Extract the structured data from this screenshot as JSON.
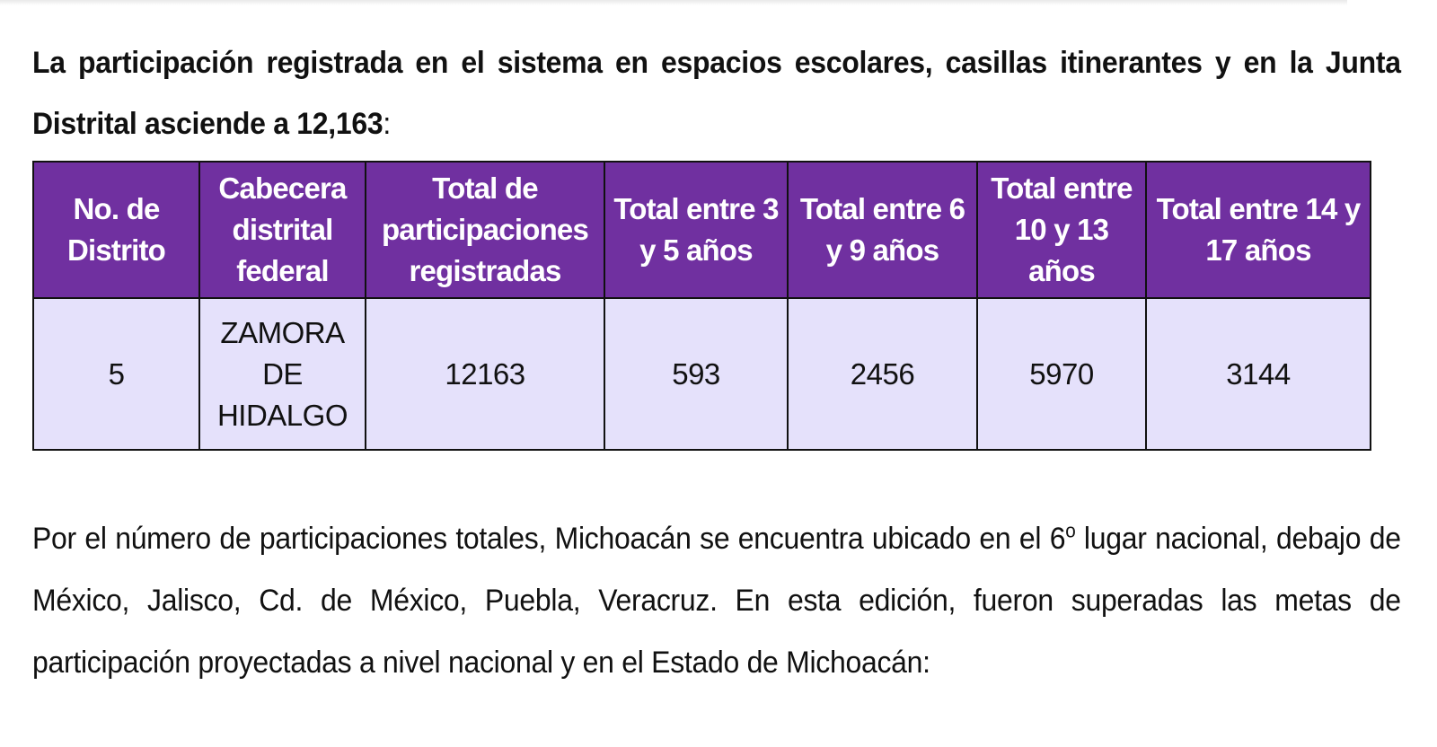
{
  "intro": {
    "text": "La participación registrada en el sistema en espacios escolares, casillas itinerantes y en la Junta Distrital asciende a 12,163",
    "colon": ":"
  },
  "table": {
    "headers": [
      "No. de Distrito",
      "Cabecera distrital federal",
      "Total de participaciones registradas",
      "Total entre 3 y 5 años",
      "Total entre 6 y 9 años",
      "Total entre 10 y 13 años",
      "Total entre 14 y 17 años"
    ],
    "rows": [
      [
        "5",
        "ZAMORA DE HIDALGO",
        "12163",
        "593",
        "2456",
        "5970",
        "3144"
      ]
    ]
  },
  "conclusion": {
    "before": "Por el número de participaciones totales, Michoacán se encuentra ubicado en el 6",
    "ordinal": "o",
    "after": " lugar nacional, debajo de México, Jalisco, Cd. de México, Puebla, Veracruz. En esta edición, fueron superadas las metas de participación proyectadas a nivel nacional y en el Estado de Michoacán:"
  },
  "colors": {
    "header_background": "#7030a0",
    "header_text": "#ffffff",
    "cell_background": "#e5e1fb"
  }
}
